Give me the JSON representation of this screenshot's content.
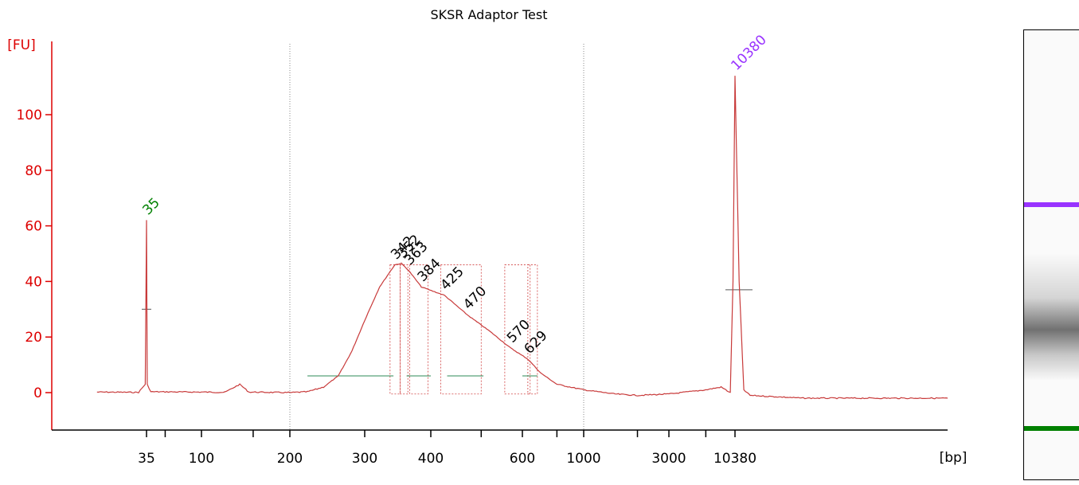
{
  "chart_data": {
    "type": "line",
    "title": "SKSR Adaptor Test",
    "ylabel": "[FU]",
    "xlabel": "[bp]",
    "ylim": [
      -13,
      123
    ],
    "y_ticks": [
      0,
      20,
      40,
      60,
      80,
      100
    ],
    "x_tick_labels": [
      "35",
      "100",
      "200",
      "300",
      "400",
      "600",
      "1000",
      "3000",
      "10380"
    ],
    "x_scale": "log (bp)",
    "grid": "dotted vertical lines at 200 and 1000 bp",
    "series": [
      {
        "values": [
          {
            "bp": 20,
            "fu": 0.2
          },
          {
            "bp": 32,
            "fu": 0.1
          },
          {
            "bp": 34.5,
            "fu": 3
          },
          {
            "bp": 35,
            "fu": 62
          },
          {
            "bp": 35.5,
            "fu": 3
          },
          {
            "bp": 38,
            "fu": 0.3
          },
          {
            "bp": 100,
            "fu": 0.2
          },
          {
            "bp": 120,
            "fu": 0.1
          },
          {
            "bp": 135,
            "fu": 3
          },
          {
            "bp": 145,
            "fu": 0.2
          },
          {
            "bp": 200,
            "fu": 0
          },
          {
            "bp": 220,
            "fu": 0.3
          },
          {
            "bp": 240,
            "fu": 2
          },
          {
            "bp": 260,
            "fu": 6
          },
          {
            "bp": 280,
            "fu": 15
          },
          {
            "bp": 300,
            "fu": 26
          },
          {
            "bp": 320,
            "fu": 38
          },
          {
            "bp": 342,
            "fu": 46
          },
          {
            "bp": 352,
            "fu": 46.5
          },
          {
            "bp": 363,
            "fu": 44
          },
          {
            "bp": 384,
            "fu": 38
          },
          {
            "bp": 425,
            "fu": 35
          },
          {
            "bp": 470,
            "fu": 28
          },
          {
            "bp": 520,
            "fu": 22
          },
          {
            "bp": 570,
            "fu": 16
          },
          {
            "bp": 629,
            "fu": 12
          },
          {
            "bp": 700,
            "fu": 7
          },
          {
            "bp": 800,
            "fu": 3
          },
          {
            "bp": 1000,
            "fu": 1
          },
          {
            "bp": 1500,
            "fu": -0.5
          },
          {
            "bp": 2000,
            "fu": -1
          },
          {
            "bp": 3000,
            "fu": -0.5
          },
          {
            "bp": 6000,
            "fu": 1
          },
          {
            "bp": 8000,
            "fu": 2
          },
          {
            "bp": 9500,
            "fu": 0
          },
          {
            "bp": 10000,
            "fu": 40
          },
          {
            "bp": 10380,
            "fu": 114
          },
          {
            "bp": 10800,
            "fu": 40
          },
          {
            "bp": 11300,
            "fu": 1
          },
          {
            "bp": 12000,
            "fu": -1
          },
          {
            "bp": 20000,
            "fu": -2
          },
          {
            "bp": 40000,
            "fu": -2
          },
          {
            "bp": 80000,
            "fu": -2
          }
        ]
      }
    ],
    "peak_labels": [
      {
        "label": "35",
        "bp": 35,
        "fu": 62,
        "color": "#008000"
      },
      {
        "label": "342",
        "bp": 342,
        "fu": 46,
        "color": "#000000"
      },
      {
        "label": "352",
        "bp": 352,
        "fu": 46.5,
        "color": "#000000"
      },
      {
        "label": "363",
        "bp": 363,
        "fu": 44,
        "color": "#000000"
      },
      {
        "label": "384",
        "bp": 384,
        "fu": 38,
        "color": "#000000"
      },
      {
        "label": "425",
        "bp": 425,
        "fu": 35,
        "color": "#000000"
      },
      {
        "label": "470",
        "bp": 470,
        "fu": 28,
        "color": "#000000"
      },
      {
        "label": "570",
        "bp": 570,
        "fu": 16,
        "color": "#000000"
      },
      {
        "label": "629",
        "bp": 629,
        "fu": 12,
        "color": "#000000"
      },
      {
        "label": "10380",
        "bp": 10380,
        "fu": 114,
        "color": "#9933ff"
      }
    ],
    "colors": {
      "axis": "#dd0000",
      "trace": "#c83a3a",
      "marker_lower": "#008000",
      "marker_upper": "#9933ff",
      "baseline": "#2e8b57"
    }
  },
  "gel": {
    "upper_marker_color": "#9933ff",
    "lower_marker_color": "#008000"
  }
}
